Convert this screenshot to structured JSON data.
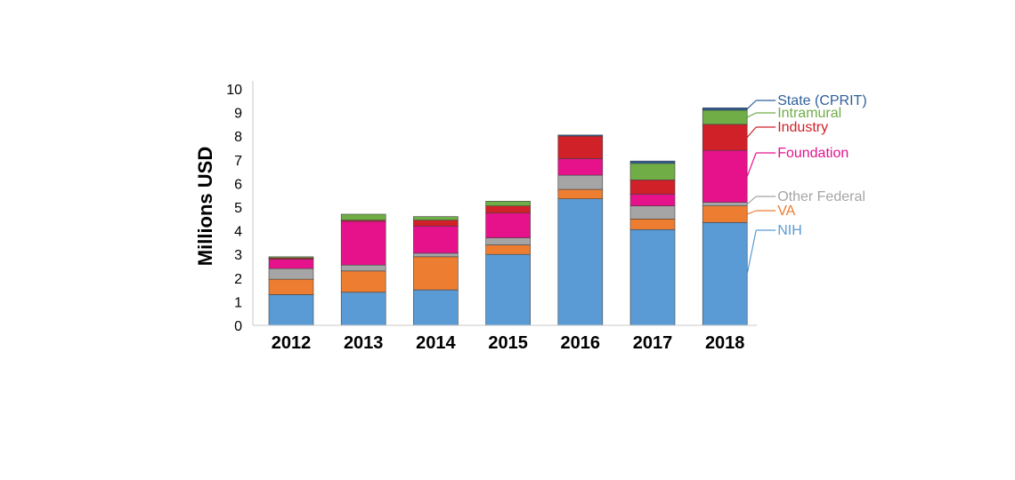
{
  "chart_data": {
    "type": "bar",
    "stacked": true,
    "categories": [
      "2012",
      "2013",
      "2014",
      "2015",
      "2016",
      "2017",
      "2018"
    ],
    "ylabel": "Millions USD",
    "xlabel": "",
    "ylim": [
      0,
      10
    ],
    "yticks": [
      "0",
      "1",
      "2",
      "3",
      "4",
      "5",
      "6",
      "7",
      "8",
      "9",
      "10"
    ],
    "grid": false,
    "legend_position": "right",
    "series": [
      {
        "name": "NIH",
        "color": "#5B9BD5",
        "values": [
          1.3,
          1.4,
          1.5,
          3.0,
          5.35,
          4.05,
          4.35
        ]
      },
      {
        "name": "VA",
        "color": "#ED7D31",
        "values": [
          0.65,
          0.9,
          1.4,
          0.4,
          0.4,
          0.45,
          0.7
        ]
      },
      {
        "name": "Other Federal",
        "color": "#A5A5A5",
        "values": [
          0.45,
          0.25,
          0.15,
          0.3,
          0.6,
          0.55,
          0.15
        ]
      },
      {
        "name": "Foundation",
        "color": "#E6128C",
        "values": [
          0.4,
          1.85,
          1.15,
          1.05,
          0.7,
          0.5,
          2.2
        ]
      },
      {
        "name": "Industry",
        "color": "#D02028",
        "values": [
          0.05,
          0.05,
          0.25,
          0.3,
          0.95,
          0.6,
          1.1
        ]
      },
      {
        "name": "Intramural",
        "color": "#70AD47",
        "values": [
          0.05,
          0.25,
          0.15,
          0.2,
          0.0,
          0.7,
          0.6
        ]
      },
      {
        "name": "State (CPRIT)",
        "color": "#2E5F9A",
        "values": [
          0.0,
          0.0,
          0.0,
          0.0,
          0.05,
          0.1,
          0.1
        ]
      }
    ]
  }
}
